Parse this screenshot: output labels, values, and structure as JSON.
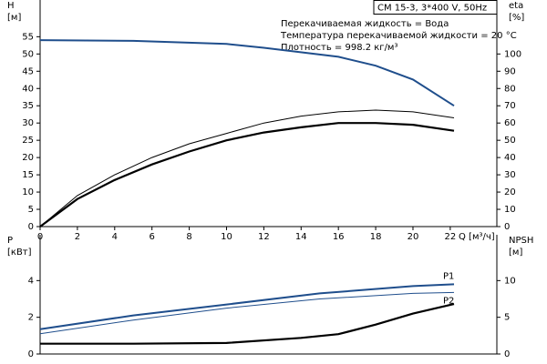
{
  "chart_data": [
    {
      "type": "line",
      "title": "CM 15-3, 3*400 V, 50Hz",
      "annotations": [
        "Перекачиваемая жидкость = Вода",
        "Температура перекачиваемой жидкости = 20 °C",
        "Плотность = 998.2 кг/м³"
      ],
      "ylabel": [
        "H",
        "[м]"
      ],
      "y2label": [
        "eta",
        "[%]"
      ],
      "xlabel": "Q [м³/ч]",
      "xlim": [
        0,
        24.5
      ],
      "xticks": [
        0,
        2,
        4,
        6,
        8,
        10,
        12,
        14,
        16,
        18,
        20,
        22
      ],
      "ylim": [
        0,
        63
      ],
      "yticks": [
        0,
        5,
        10,
        15,
        20,
        25,
        30,
        35,
        40,
        45,
        50,
        55
      ],
      "y2lim": [
        0,
        126
      ],
      "y2ticks": [
        0,
        10,
        20,
        30,
        40,
        50,
        60,
        70,
        80,
        90,
        100
      ],
      "series": [
        {
          "color": "#1f4e8c",
          "linewidth": 2,
          "x": [
            0,
            5,
            10,
            12,
            16,
            18,
            20,
            22.2
          ],
          "values": [
            54,
            53.8,
            52.9,
            51.8,
            49.2,
            46.6,
            42.6,
            35
          ]
        },
        {
          "color": "#000000",
          "linewidth": 1,
          "axis": "y2",
          "x": [
            0,
            2,
            4,
            6,
            8,
            10,
            12,
            14,
            16,
            18,
            20,
            22.2
          ],
          "values": [
            0,
            18,
            30,
            40,
            48,
            54,
            60,
            64,
            66.5,
            67.5,
            66.5,
            63
          ]
        },
        {
          "color": "#000000",
          "linewidth": 2.2,
          "axis": "y2",
          "x": [
            0,
            2,
            4,
            6,
            8,
            10,
            12,
            14,
            16,
            18,
            20,
            22.2
          ],
          "values": [
            0,
            16,
            27,
            36,
            43.5,
            50,
            54.5,
            57.5,
            60,
            60,
            59,
            55.5
          ]
        }
      ]
    },
    {
      "type": "line",
      "ylabel": [
        "P",
        "[кВт]"
      ],
      "y2label": [
        "NPSH",
        "[м]"
      ],
      "xlim": [
        0,
        24.5
      ],
      "ylim": [
        0,
        6
      ],
      "yticks": [
        0,
        2,
        4
      ],
      "y2lim": [
        0,
        15
      ],
      "y2ticks": [
        0,
        5,
        10
      ],
      "series": [
        {
          "name": "P1",
          "color": "#1f4e8c",
          "linewidth": 2,
          "x": [
            0,
            5,
            10,
            15,
            20,
            22.2
          ],
          "values": [
            1.35,
            2.1,
            2.7,
            3.3,
            3.7,
            3.8
          ]
        },
        {
          "name": "P2",
          "color": "#1f4e8c",
          "linewidth": 1,
          "x": [
            0,
            5,
            10,
            15,
            20,
            22.2
          ],
          "values": [
            1.1,
            1.85,
            2.5,
            3.0,
            3.3,
            3.35
          ]
        },
        {
          "color": "#000000",
          "linewidth": 2.2,
          "axis": "y2",
          "x": [
            0,
            5,
            10,
            14,
            16,
            18,
            20,
            22.2
          ],
          "values": [
            1.4,
            1.4,
            1.5,
            2.2,
            2.7,
            4,
            5.5,
            6.8
          ]
        }
      ]
    }
  ]
}
